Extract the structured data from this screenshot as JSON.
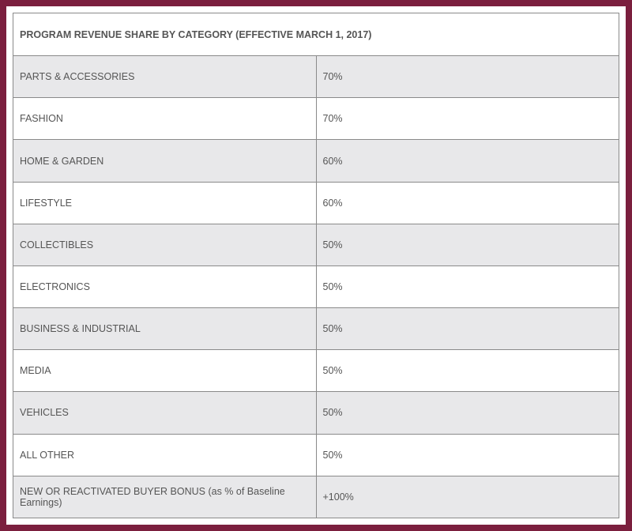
{
  "header": {
    "title": "PROGRAM REVENUE SHARE BY CATEGORY (EFFECTIVE MARCH 1, 2017)"
  },
  "table": {
    "rows": [
      [
        "PARTS & ACCESSORIES",
        "70%"
      ],
      [
        "FASHION",
        "70%"
      ],
      [
        "HOME & GARDEN",
        "60%"
      ],
      [
        "LIFESTYLE",
        "60%"
      ],
      [
        "COLLECTIBLES",
        "50%"
      ],
      [
        "ELECTRONICS",
        "50%"
      ],
      [
        "BUSINESS & INDUSTRIAL",
        "50%"
      ],
      [
        "MEDIA",
        "50%"
      ],
      [
        "VEHICLES",
        "50%"
      ],
      [
        "ALL OTHER",
        "50%"
      ],
      [
        "NEW OR REACTIVATED BUYER BONUS (as % of Baseline Earnings)",
        "+100%"
      ]
    ]
  }
}
